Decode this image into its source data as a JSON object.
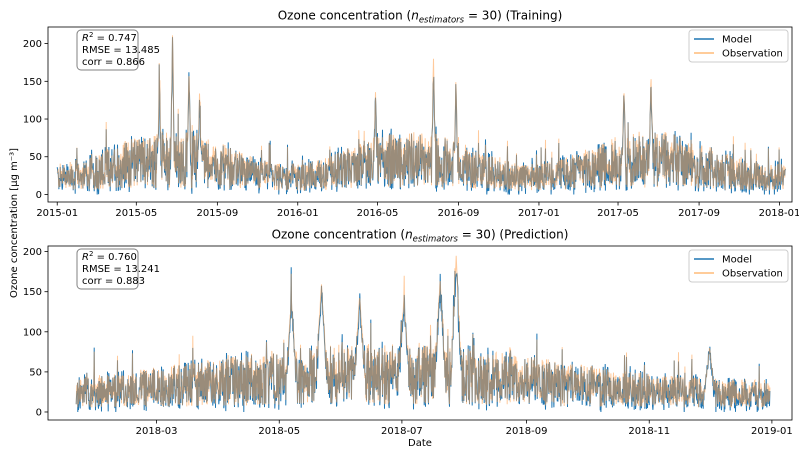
{
  "figure": {
    "ylabel": "Ozone concentration [μg m⁻³]",
    "xlabel": "Date"
  },
  "colors": {
    "model": "#1f77b4",
    "observation": "#ffbb78",
    "overlap": "#8c7b5f"
  },
  "chart_data": [
    {
      "type": "line",
      "title": "Ozone concentration (n_estimators = 30) (Training)",
      "title_parts": {
        "pre": "Ozone concentration (",
        "n": "n",
        "sub": "estimators",
        "post": " = 30) (Training)"
      },
      "x_ticks": [
        "2015-01",
        "2015-05",
        "2015-09",
        "2016-01",
        "2016-05",
        "2016-09",
        "2017-01",
        "2017-05",
        "2017-09",
        "2018-01"
      ],
      "y_ticks": [
        0,
        50,
        100,
        150,
        200
      ],
      "xlim": [
        "2014-12-18",
        "2018-01-20"
      ],
      "ylim": [
        -10,
        222
      ],
      "stats": {
        "r2": "0.747",
        "rmse": "RMSE = 13.485",
        "corr": "corr =  0.866"
      },
      "legend": [
        "Model",
        "Observation"
      ],
      "legend_position": "upper right",
      "series": [
        {
          "name": "Model"
        },
        {
          "name": "Observation"
        }
      ],
      "x_range": [
        "2015-01-01",
        "2018-01-10"
      ],
      "observation_peaks": [
        {
          "x": "2015-06-25",
          "y": 212
        },
        {
          "x": "2015-06-05",
          "y": 158
        },
        {
          "x": "2015-07-20",
          "y": 168
        },
        {
          "x": "2015-08-05",
          "y": 136
        },
        {
          "x": "2016-04-28",
          "y": 137
        },
        {
          "x": "2016-07-25",
          "y": 182
        },
        {
          "x": "2016-08-28",
          "y": 155
        },
        {
          "x": "2017-05-10",
          "y": 145
        },
        {
          "x": "2017-06-20",
          "y": 162
        }
      ]
    },
    {
      "type": "line",
      "title": "Ozone concentration (n_estimators = 30) (Prediction)",
      "title_parts": {
        "pre": "Ozone concentration (",
        "n": "n",
        "sub": "estimators",
        "post": " = 30) (Prediction)"
      },
      "x_ticks": [
        "2018-03",
        "2018-05",
        "2018-07",
        "2018-09",
        "2018-11",
        "2019-01"
      ],
      "y_ticks": [
        0,
        50,
        100,
        150,
        200
      ],
      "xlim": [
        "2018-01-06",
        "2019-01-11"
      ],
      "ylim": [
        -10,
        207
      ],
      "stats": {
        "r2": "0.760",
        "rmse": "RMSE = 13.241",
        "corr": "corr =  0.883"
      },
      "legend": [
        "Model",
        "Observation"
      ],
      "legend_position": "upper right",
      "series": [
        {
          "name": "Model"
        },
        {
          "name": "Observation"
        }
      ],
      "x_range": [
        "2018-01-20",
        "2018-12-31"
      ],
      "observation_peaks": [
        {
          "x": "2018-07-28",
          "y": 195
        },
        {
          "x": "2018-05-22",
          "y": 160
        },
        {
          "x": "2018-07-20",
          "y": 165
        },
        {
          "x": "2018-05-07",
          "y": 140
        },
        {
          "x": "2018-06-10",
          "y": 145
        },
        {
          "x": "2018-07-02",
          "y": 140
        },
        {
          "x": "2018-12-01",
          "y": 80
        }
      ]
    }
  ]
}
